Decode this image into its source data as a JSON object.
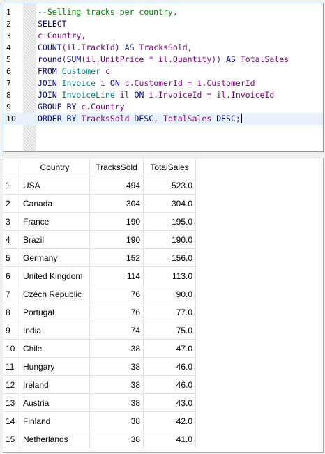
{
  "editor": {
    "lines": [
      {
        "n": "1",
        "tokens": [
          {
            "t": "--Selling tracks per country,",
            "c": "#008000"
          }
        ]
      },
      {
        "n": "2",
        "tokens": [
          {
            "t": "SELECT",
            "c": "#000080"
          }
        ]
      },
      {
        "n": "3",
        "tokens": [
          {
            "t": "c.Country,",
            "c": "#800080"
          }
        ]
      },
      {
        "n": "4",
        "tokens": [
          {
            "t": "COUNT",
            "c": "#000080"
          },
          {
            "t": "(il.TrackId) ",
            "c": "#800080"
          },
          {
            "t": "AS",
            "c": "#000080"
          },
          {
            "t": " TracksSold,",
            "c": "#800080"
          }
        ]
      },
      {
        "n": "5",
        "tokens": [
          {
            "t": "round",
            "c": "#000080"
          },
          {
            "t": "(",
            "c": "#800080"
          },
          {
            "t": "SUM",
            "c": "#000080"
          },
          {
            "t": "(il.UnitPrice * il.Quantity)) ",
            "c": "#800080"
          },
          {
            "t": "AS",
            "c": "#000080"
          },
          {
            "t": " TotalSales",
            "c": "#800080"
          }
        ]
      },
      {
        "n": "6",
        "tokens": [
          {
            "t": "FROM",
            "c": "#000080"
          },
          {
            "t": " ",
            "c": "#000000"
          },
          {
            "t": "Customer",
            "c": "#008080"
          },
          {
            "t": " c",
            "c": "#800080"
          }
        ]
      },
      {
        "n": "7",
        "tokens": [
          {
            "t": "JOIN",
            "c": "#000080"
          },
          {
            "t": " ",
            "c": "#000000"
          },
          {
            "t": "Invoice",
            "c": "#008080"
          },
          {
            "t": " i ",
            "c": "#800080"
          },
          {
            "t": "ON",
            "c": "#000080"
          },
          {
            "t": " c.CustomerId = i.CustomerId",
            "c": "#800080"
          }
        ]
      },
      {
        "n": "8",
        "tokens": [
          {
            "t": "JOIN",
            "c": "#000080"
          },
          {
            "t": " ",
            "c": "#000000"
          },
          {
            "t": "InvoiceLine",
            "c": "#008080"
          },
          {
            "t": " il ",
            "c": "#800080"
          },
          {
            "t": "ON",
            "c": "#000080"
          },
          {
            "t": " i.InvoiceId = il.InvoiceId",
            "c": "#800080"
          }
        ]
      },
      {
        "n": "9",
        "tokens": [
          {
            "t": "GROUP BY",
            "c": "#000080"
          },
          {
            "t": " c.Country",
            "c": "#800080"
          }
        ]
      },
      {
        "n": "10",
        "tokens": [
          {
            "t": "ORDER BY",
            "c": "#000080"
          },
          {
            "t": " TracksSold ",
            "c": "#800080"
          },
          {
            "t": "DESC",
            "c": "#000080"
          },
          {
            "t": ", TotalSales ",
            "c": "#800080"
          },
          {
            "t": "DESC",
            "c": "#000080"
          },
          {
            "t": ";",
            "c": "#800080"
          }
        ]
      }
    ],
    "active_line": 10
  },
  "results": {
    "columns": [
      "Country",
      "TracksSold",
      "TotalSales"
    ],
    "rows": [
      {
        "idx": "1",
        "country": "USA",
        "sold": "494",
        "sales": "523.0"
      },
      {
        "idx": "2",
        "country": "Canada",
        "sold": "304",
        "sales": "304.0"
      },
      {
        "idx": "3",
        "country": "France",
        "sold": "190",
        "sales": "195.0"
      },
      {
        "idx": "4",
        "country": "Brazil",
        "sold": "190",
        "sales": "190.0"
      },
      {
        "idx": "5",
        "country": "Germany",
        "sold": "152",
        "sales": "156.0"
      },
      {
        "idx": "6",
        "country": "United Kingdom",
        "sold": "114",
        "sales": "113.0"
      },
      {
        "idx": "7",
        "country": "Czech Republic",
        "sold": "76",
        "sales": "90.0"
      },
      {
        "idx": "8",
        "country": "Portugal",
        "sold": "76",
        "sales": "77.0"
      },
      {
        "idx": "9",
        "country": "India",
        "sold": "74",
        "sales": "75.0"
      },
      {
        "idx": "10",
        "country": "Chile",
        "sold": "38",
        "sales": "47.0"
      },
      {
        "idx": "11",
        "country": "Hungary",
        "sold": "38",
        "sales": "46.0"
      },
      {
        "idx": "12",
        "country": "Ireland",
        "sold": "38",
        "sales": "46.0"
      },
      {
        "idx": "13",
        "country": "Austria",
        "sold": "38",
        "sales": "43.0"
      },
      {
        "idx": "14",
        "country": "Finland",
        "sold": "38",
        "sales": "42.0"
      },
      {
        "idx": "15",
        "country": "Netherlands",
        "sold": "38",
        "sales": "41.0"
      }
    ]
  }
}
